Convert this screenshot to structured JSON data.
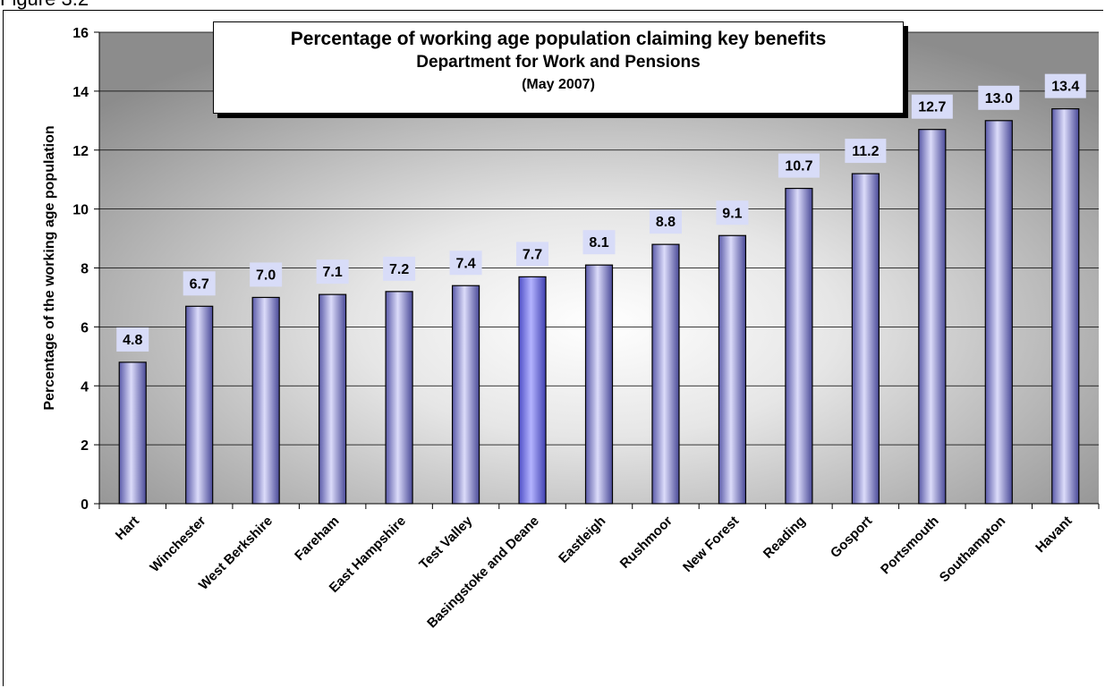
{
  "figure_label": "Figure 3.2",
  "chart_data": {
    "type": "bar",
    "title": "Percentage of working age population claiming key benefits",
    "subtitle": "Department for Work and Pensions",
    "date_note": "(May 2007)",
    "xlabel": "",
    "ylabel": "Percentage of the working age population",
    "ylim": [
      0,
      16
    ],
    "yticks": [
      0,
      2,
      4,
      6,
      8,
      10,
      12,
      14,
      16
    ],
    "grid": true,
    "data_labels": true,
    "categories": [
      "Hart",
      "Winchester",
      "West Berkshire",
      "Fareham",
      "East Hampshire",
      "Test Valley",
      "Basingstoke and Deane",
      "Eastleigh",
      "Rushmoor",
      "New Forest",
      "Reading",
      "Gosport",
      "Portsmouth",
      "Southampton",
      "Havant"
    ],
    "values": [
      4.8,
      6.7,
      7.0,
      7.1,
      7.2,
      7.4,
      7.7,
      8.1,
      8.8,
      9.1,
      10.7,
      11.2,
      12.7,
      13.0,
      13.4
    ],
    "value_labels": [
      "4.8",
      "6.7",
      "7.0",
      "7.1",
      "7.2",
      "7.4",
      "7.7",
      "8.1",
      "8.8",
      "9.1",
      "10.7",
      "11.2",
      "12.7",
      "13.0",
      "13.4"
    ],
    "highlight_category": "Basingstoke and Deane",
    "colors": {
      "bar": "#9a9ae6",
      "bar_highlight": "#8080f0",
      "label_box": "#d8dcf8",
      "plot_bg_center": "#ffffff",
      "plot_bg_edge": "#8c8c8c"
    }
  }
}
